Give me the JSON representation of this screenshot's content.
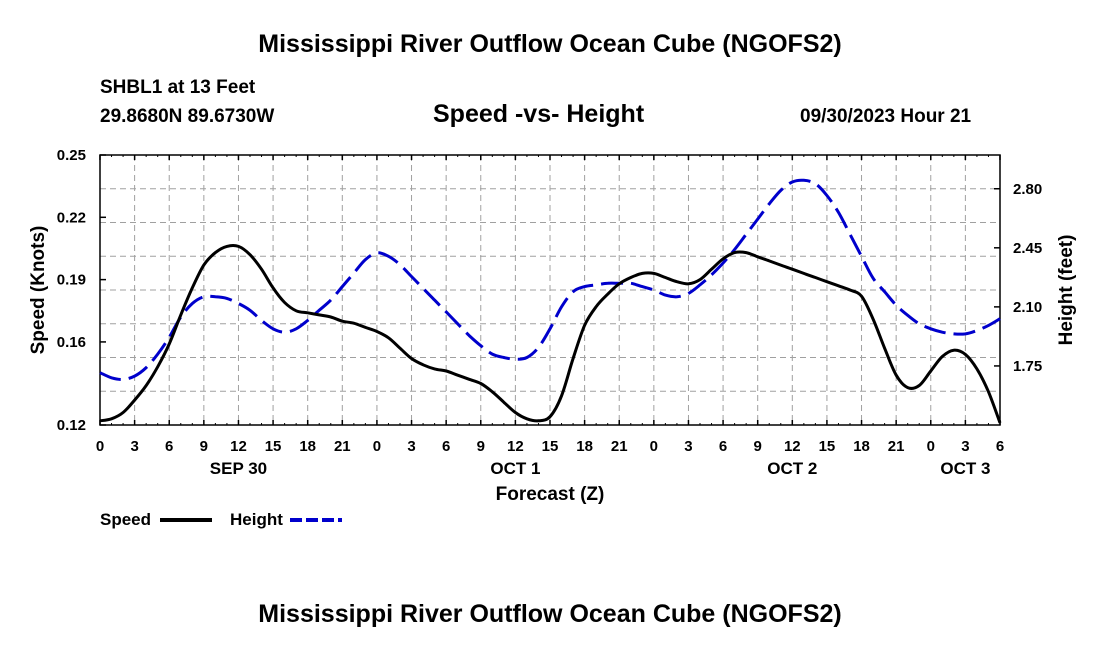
{
  "page": {
    "title_top": "Mississippi River Outflow Ocean Cube (NGOFS2)",
    "title_bottom": "Mississippi River Outflow Ocean Cube (NGOFS2)",
    "station": "SHBL1 at 13 Feet",
    "coords": "29.8680N  89.6730W",
    "subtitle": "Speed -vs- Height",
    "datetime": "09/30/2023 Hour 21"
  },
  "colors": {
    "speed": "#000000",
    "height": "#0000cc",
    "grid": "#a0a0a0"
  },
  "chart_data": {
    "type": "line",
    "title": "Speed -vs- Height",
    "xlabel": "Forecast (Z)",
    "ylabel": "Speed (Knots)",
    "y2label": "Height (feet)",
    "x_hours_range": [
      0,
      78
    ],
    "x_tick_labels": [
      "0",
      "3",
      "6",
      "9",
      "12",
      "15",
      "18",
      "21",
      "0",
      "3",
      "6",
      "9",
      "12",
      "15",
      "18",
      "21",
      "0",
      "3",
      "6",
      "9",
      "12",
      "15",
      "18",
      "21",
      "0",
      "3",
      "6"
    ],
    "date_labels": [
      {
        "label": "SEP 30",
        "hour": 12
      },
      {
        "label": "OCT 1",
        "hour": 36
      },
      {
        "label": "OCT 2",
        "hour": 60
      },
      {
        "label": "OCT 3",
        "hour": 75
      }
    ],
    "ylim": [
      0.12,
      0.25
    ],
    "y_ticks": [
      0.12,
      0.16,
      0.19,
      0.22,
      0.25
    ],
    "y_tick_labels": [
      "0.12",
      "0.16",
      "0.19",
      "0.22",
      "0.25"
    ],
    "y2lim": [
      1.4,
      3.0
    ],
    "y2_ticks": [
      1.75,
      2.1,
      2.45,
      2.8
    ],
    "y2_tick_labels": [
      "1.75",
      "2.10",
      "2.45",
      "2.80"
    ],
    "legend": {
      "position": "bottom-left",
      "entries": [
        "Speed",
        "Height"
      ]
    },
    "grid": true,
    "series": [
      {
        "name": "Speed",
        "axis": "left",
        "style": "solid",
        "x": [
          0,
          1,
          2,
          3,
          4,
          5,
          6,
          7,
          8,
          9,
          10,
          11,
          12,
          13,
          14,
          15,
          16,
          17,
          18,
          19,
          20,
          21,
          22,
          23,
          24,
          25,
          26,
          27,
          28,
          29,
          30,
          31,
          32,
          33,
          34,
          35,
          36,
          37,
          38,
          39,
          40,
          41,
          42,
          43,
          44,
          45,
          46,
          47,
          48,
          49,
          50,
          51,
          52,
          53,
          54,
          55,
          56,
          57,
          58,
          59,
          60,
          61,
          62,
          63,
          64,
          65,
          66,
          67,
          68,
          69,
          70,
          71,
          72,
          73,
          74,
          75,
          76,
          77,
          78
        ],
        "values": [
          0.122,
          0.123,
          0.126,
          0.132,
          0.139,
          0.148,
          0.159,
          0.173,
          0.186,
          0.197,
          0.203,
          0.206,
          0.206,
          0.202,
          0.195,
          0.186,
          0.179,
          0.175,
          0.174,
          0.173,
          0.172,
          0.17,
          0.169,
          0.167,
          0.165,
          0.162,
          0.157,
          0.152,
          0.149,
          0.147,
          0.146,
          0.144,
          0.142,
          0.14,
          0.136,
          0.131,
          0.126,
          0.123,
          0.122,
          0.124,
          0.134,
          0.152,
          0.168,
          0.177,
          0.183,
          0.188,
          0.191,
          0.193,
          0.193,
          0.191,
          0.189,
          0.188,
          0.19,
          0.195,
          0.2,
          0.203,
          0.203,
          0.201,
          0.199,
          0.197,
          0.195,
          0.193,
          0.191,
          0.189,
          0.187,
          0.185,
          0.182,
          0.171,
          0.157,
          0.144,
          0.138,
          0.139,
          0.146,
          0.153,
          0.156,
          0.154,
          0.147,
          0.136,
          0.121
        ]
      },
      {
        "name": "Height",
        "axis": "right",
        "style": "dashed",
        "x": [
          0,
          1,
          2,
          3,
          4,
          5,
          6,
          7,
          8,
          9,
          10,
          11,
          12,
          13,
          14,
          15,
          16,
          17,
          18,
          19,
          20,
          21,
          22,
          23,
          24,
          25,
          26,
          27,
          28,
          29,
          30,
          31,
          32,
          33,
          34,
          35,
          36,
          37,
          38,
          39,
          40,
          41,
          42,
          43,
          44,
          45,
          46,
          47,
          48,
          49,
          50,
          51,
          52,
          53,
          54,
          55,
          56,
          57,
          58,
          59,
          60,
          61,
          62,
          63,
          64,
          65,
          66,
          67,
          68,
          69,
          70,
          71,
          72,
          73,
          74,
          75,
          76,
          77,
          78
        ],
        "values": [
          1.71,
          1.68,
          1.67,
          1.69,
          1.74,
          1.82,
          1.92,
          2.04,
          2.12,
          2.16,
          2.16,
          2.15,
          2.12,
          2.08,
          2.02,
          1.97,
          1.95,
          1.97,
          2.02,
          2.08,
          2.14,
          2.22,
          2.3,
          2.38,
          2.42,
          2.4,
          2.35,
          2.28,
          2.21,
          2.14,
          2.07,
          2.0,
          1.93,
          1.87,
          1.82,
          1.8,
          1.79,
          1.8,
          1.86,
          1.97,
          2.1,
          2.19,
          2.22,
          2.23,
          2.24,
          2.24,
          2.24,
          2.22,
          2.2,
          2.17,
          2.16,
          2.18,
          2.23,
          2.29,
          2.36,
          2.44,
          2.53,
          2.62,
          2.71,
          2.79,
          2.84,
          2.85,
          2.83,
          2.76,
          2.66,
          2.53,
          2.4,
          2.27,
          2.19,
          2.11,
          2.05,
          2.0,
          1.97,
          1.95,
          1.94,
          1.94,
          1.96,
          1.99,
          2.03
        ]
      }
    ]
  }
}
